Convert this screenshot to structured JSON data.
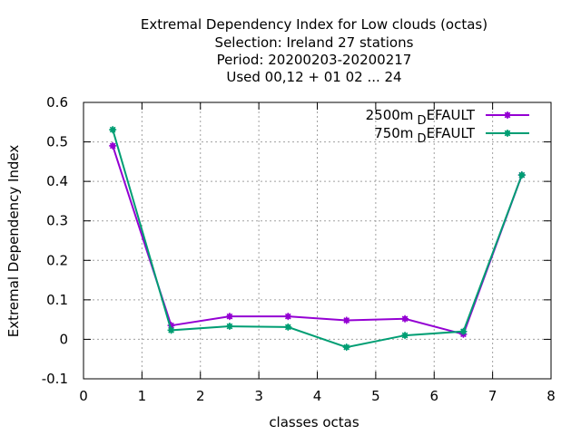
{
  "chart_data": {
    "type": "line",
    "title_lines": [
      "Extremal Dependency Index  for Low clouds (octas)",
      "Selection: Ireland      27 stations",
      "Period: 20200203-20200217",
      "Used  00,12  + 01 02 ... 24"
    ],
    "xlabel": "classes octas",
    "ylabel": "Extremal Dependency Index",
    "xlim": [
      0,
      8
    ],
    "ylim": [
      -0.1,
      0.6
    ],
    "x_ticks": [
      0,
      1,
      2,
      3,
      4,
      5,
      6,
      7,
      8
    ],
    "x_tick_labels": [
      "0",
      "1",
      "2",
      "3",
      "4",
      "5",
      "6",
      "7",
      "8"
    ],
    "y_ticks": [
      -0.1,
      0,
      0.1,
      0.2,
      0.3,
      0.4,
      0.5,
      0.6
    ],
    "y_tick_labels": [
      "-0.1",
      "0",
      "0.1",
      "0.2",
      "0.3",
      "0.4",
      "0.5",
      "0.6"
    ],
    "grid": true,
    "legend_position": "top-right",
    "series": [
      {
        "name": "2500m",
        "name_sub": "D",
        "name_rest": "EFAULT",
        "color": "#9400d3",
        "x": [
          0.5,
          1.5,
          2.5,
          3.5,
          4.5,
          5.5,
          6.5,
          7.5
        ],
        "y": [
          0.49,
          0.035,
          0.058,
          0.058,
          0.048,
          0.052,
          0.013,
          0.416
        ]
      },
      {
        "name": "750m",
        "name_sub": "D",
        "name_rest": "EFAULT",
        "color": "#009e73",
        "x": [
          0.5,
          1.5,
          2.5,
          3.5,
          4.5,
          5.5,
          6.5,
          7.5
        ],
        "y": [
          0.531,
          0.023,
          0.033,
          0.031,
          -0.02,
          0.01,
          0.02,
          0.416
        ]
      }
    ]
  }
}
